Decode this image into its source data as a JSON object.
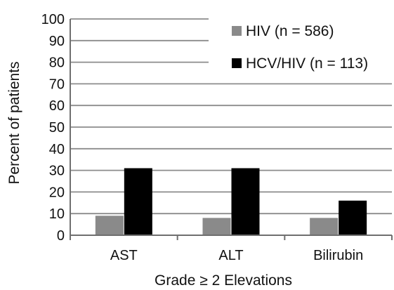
{
  "chart_data": {
    "type": "bar",
    "title": "",
    "xlabel": "Grade ≥ 2 Elevations",
    "ylabel": "Percent of patients",
    "categories": [
      "AST",
      "ALT",
      "Bilirubin"
    ],
    "series": [
      {
        "name": "HIV (n = 586)",
        "color": "#8a8a8a",
        "values": [
          9,
          8,
          8
        ]
      },
      {
        "name": "HCV/HIV (n = 113)",
        "color": "#000000",
        "values": [
          31,
          31,
          16
        ]
      }
    ],
    "ylim": [
      0,
      100
    ],
    "yticks": [
      0,
      10,
      20,
      30,
      40,
      50,
      60,
      70,
      80,
      90,
      100
    ],
    "grid": true,
    "legend_position": "top-right"
  }
}
